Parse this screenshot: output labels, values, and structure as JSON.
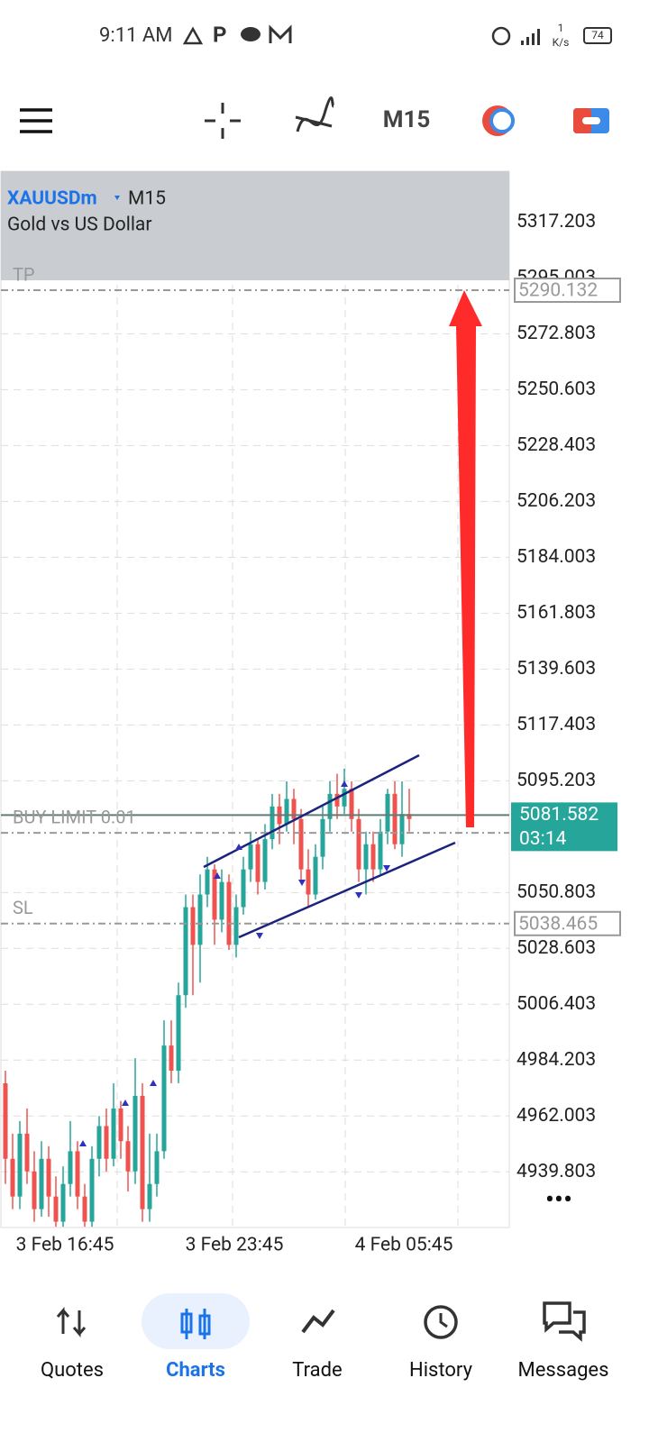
{
  "status_bar": {
    "time": "9:11 AM",
    "net_speed": "1",
    "net_unit": "K/s",
    "battery": "74"
  },
  "toolbar": {
    "timeframe": "M15"
  },
  "chart": {
    "type": "candlestick",
    "symbol": "XAUUSDm",
    "timeframe": "M15",
    "description": "Gold vs US Dollar",
    "ylim": [
      4917.7,
      5337.4
    ],
    "yticks": [
      5317.203,
      5295.003,
      5272.803,
      5250.603,
      5228.403,
      5206.203,
      5184.003,
      5161.803,
      5139.603,
      5117.403,
      5095.203,
      5050.803,
      5028.603,
      5006.403,
      4984.203,
      4962.003,
      4939.803
    ],
    "x_labels": [
      "3 Feb 16:45",
      "3 Feb 23:45",
      "4 Feb 05:45"
    ],
    "candles": [
      [
        4975,
        4980,
        4935,
        4945
      ],
      [
        4945,
        4955,
        4925,
        4930
      ],
      [
        4930,
        4960,
        4925,
        4955
      ],
      [
        4955,
        4965,
        4935,
        4940
      ],
      [
        4940,
        4948,
        4920,
        4925
      ],
      [
        4925,
        4952,
        4922,
        4945
      ],
      [
        4945,
        4950,
        4922,
        4930
      ],
      [
        4930,
        4938,
        4918,
        4920
      ],
      [
        4920,
        4942,
        4918,
        4935
      ],
      [
        4935,
        4960,
        4930,
        4948
      ],
      [
        4948,
        4952,
        4925,
        4930
      ],
      [
        4930,
        4935,
        4918,
        4920
      ],
      [
        4920,
        4950,
        4918,
        4945
      ],
      [
        4945,
        4962,
        4938,
        4958
      ],
      [
        4958,
        4965,
        4940,
        4945
      ],
      [
        4945,
        4975,
        4942,
        4965
      ],
      [
        4965,
        4968,
        4945,
        4952
      ],
      [
        4952,
        4958,
        4932,
        4940
      ],
      [
        4940,
        4985,
        4935,
        4970
      ],
      [
        4970,
        4975,
        4920,
        4925
      ],
      [
        4925,
        4955,
        4920,
        4935
      ],
      [
        4935,
        4955,
        4930,
        4948
      ],
      [
        4948,
        5000,
        4945,
        4990
      ],
      [
        4990,
        5000,
        4975,
        4980
      ],
      [
        4980,
        5015,
        4975,
        5010
      ],
      [
        5010,
        5050,
        5005,
        5045
      ],
      [
        5045,
        5050,
        5010,
        5030
      ],
      [
        5030,
        5058,
        5015,
        5050
      ],
      [
        5050,
        5065,
        5045,
        5060
      ],
      [
        5060,
        5062,
        5030,
        5040
      ],
      [
        5040,
        5060,
        5035,
        5055
      ],
      [
        5055,
        5058,
        5028,
        5030
      ],
      [
        5030,
        5050,
        5025,
        5045
      ],
      [
        5045,
        5065,
        5042,
        5060
      ],
      [
        5060,
        5075,
        5055,
        5070
      ],
      [
        5070,
        5072,
        5050,
        5055
      ],
      [
        5055,
        5078,
        5052,
        5072
      ],
      [
        5072,
        5090,
        5068,
        5085
      ],
      [
        5085,
        5090,
        5070,
        5078
      ],
      [
        5078,
        5095,
        5075,
        5088
      ],
      [
        5088,
        5092,
        5070,
        5080
      ],
      [
        5080,
        5084,
        5055,
        5060
      ],
      [
        5060,
        5068,
        5045,
        5050
      ],
      [
        5050,
        5070,
        5048,
        5065
      ],
      [
        5065,
        5085,
        5060,
        5080
      ],
      [
        5080,
        5095,
        5075,
        5090
      ],
      [
        5090,
        5098,
        5080,
        5085
      ],
      [
        5085,
        5100,
        5082,
        5092
      ],
      [
        5092,
        5095,
        5075,
        5080
      ],
      [
        5080,
        5084,
        5055,
        5060
      ],
      [
        5060,
        5075,
        5050,
        5070
      ],
      [
        5070,
        5075,
        5055,
        5060
      ],
      [
        5060,
        5080,
        5058,
        5075
      ],
      [
        5075,
        5092,
        5070,
        5090
      ],
      [
        5090,
        5095,
        5068,
        5070
      ],
      [
        5070,
        5095,
        5065,
        5082
      ],
      [
        5082,
        5092,
        5075,
        5080
      ]
    ],
    "tp": {
      "label": "TP",
      "price": 5290.132
    },
    "buy_limit": {
      "label": "BUY LIMIT 0.01",
      "price": 5074.5
    },
    "sl": {
      "label": "SL",
      "price": 5038.465
    },
    "current": {
      "price": 5081.582,
      "timer": "03:14"
    }
  },
  "nav": {
    "items": [
      "Quotes",
      "Charts",
      "Trade",
      "History",
      "Messages"
    ]
  }
}
